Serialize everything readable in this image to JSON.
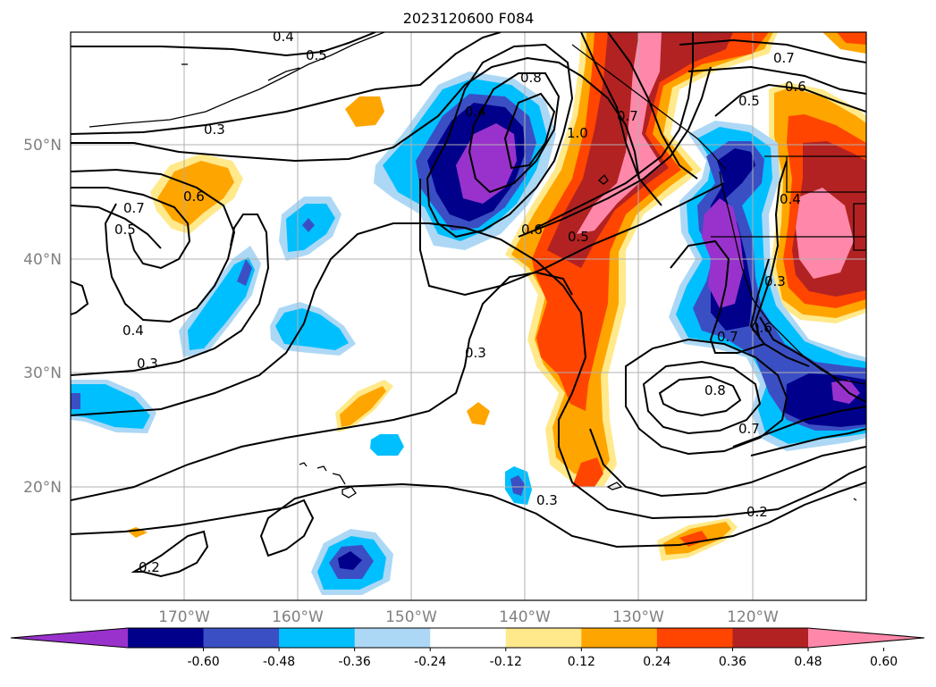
{
  "title": "2023120600 F084",
  "latitude_labels": [
    "50°N",
    "40°N",
    "30°N",
    "20°N"
  ],
  "longitude_labels": [
    "170°W",
    "160°W",
    "150°W",
    "140°W",
    "130°W",
    "120°W"
  ],
  "colorbar": {
    "ticks": [
      "-0.60",
      "-0.48",
      "-0.36",
      "-0.24",
      "-0.12",
      "0.12",
      "0.24",
      "0.36",
      "0.48",
      "0.60"
    ],
    "colors": [
      "#9932cc",
      "#00008b",
      "#3b4fc4",
      "#00bfff",
      "#add8f5",
      "#ffffff",
      "#ffe98a",
      "#ffa500",
      "#ff4500",
      "#b22222",
      "#ff88aa"
    ]
  },
  "contour_labels": [
    "0.4",
    "0.5",
    "0.3",
    "0.7",
    "0.6",
    "0.5",
    "0.4",
    "0.3",
    "0.8",
    "1.0",
    "0.7",
    "0.6",
    "0.5",
    "0.7",
    "0.6",
    "0.5",
    "0.4",
    "0.4",
    "0.3",
    "0.3",
    "0.8",
    "0.7",
    "0.7",
    "0.6",
    "0.3",
    "0.2",
    "0.2"
  ]
}
